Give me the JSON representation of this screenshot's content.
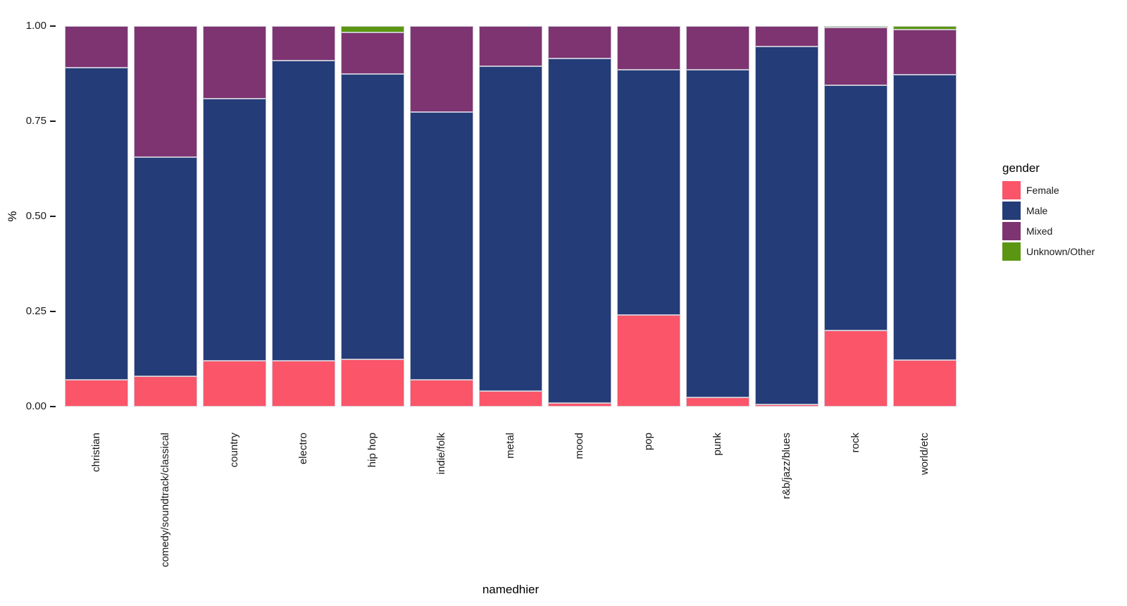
{
  "chart_data": {
    "type": "bar",
    "stacked": true,
    "normalized": true,
    "title": "",
    "xlabel": "namedhier",
    "ylabel": "%",
    "ylim": [
      0,
      1
    ],
    "grid": false,
    "panel_background": "#ffffff",
    "legend": {
      "title": "gender",
      "position": "right"
    },
    "y_ticks": [
      {
        "label": "0.00",
        "value": 0.0
      },
      {
        "label": "0.25",
        "value": 0.25
      },
      {
        "label": "0.50",
        "value": 0.5
      },
      {
        "label": "0.75",
        "value": 0.75
      },
      {
        "label": "1.00",
        "value": 1.0
      }
    ],
    "categories": [
      "christian",
      "comedy/soundtrack/classical",
      "country",
      "electro",
      "hip hop",
      "indie/folk",
      "metal",
      "mood",
      "pop",
      "punk",
      "r&b/jazz/blues",
      "rock",
      "world/etc"
    ],
    "series": [
      {
        "name": "Female",
        "color": "#FA5569",
        "values": [
          0.07,
          0.08,
          0.12,
          0.12,
          0.125,
          0.07,
          0.04,
          0.01,
          0.24,
          0.025,
          0.006,
          0.2,
          0.123
        ]
      },
      {
        "name": "Male",
        "color": "#243C78",
        "values": [
          0.82,
          0.575,
          0.69,
          0.79,
          0.75,
          0.705,
          0.855,
          0.905,
          0.645,
          0.86,
          0.94,
          0.645,
          0.75
        ]
      },
      {
        "name": "Mixed",
        "color": "#7D3471",
        "values": [
          0.11,
          0.345,
          0.19,
          0.09,
          0.108,
          0.225,
          0.105,
          0.085,
          0.115,
          0.115,
          0.054,
          0.151,
          0.117
        ]
      },
      {
        "name": "Unknown/Other",
        "color": "#5A9612",
        "values": [
          0.0,
          0.0,
          0.0,
          0.0,
          0.017,
          0.0,
          0.0,
          0.0,
          0.0,
          0.0,
          0.0,
          0.004,
          0.01
        ]
      }
    ]
  }
}
